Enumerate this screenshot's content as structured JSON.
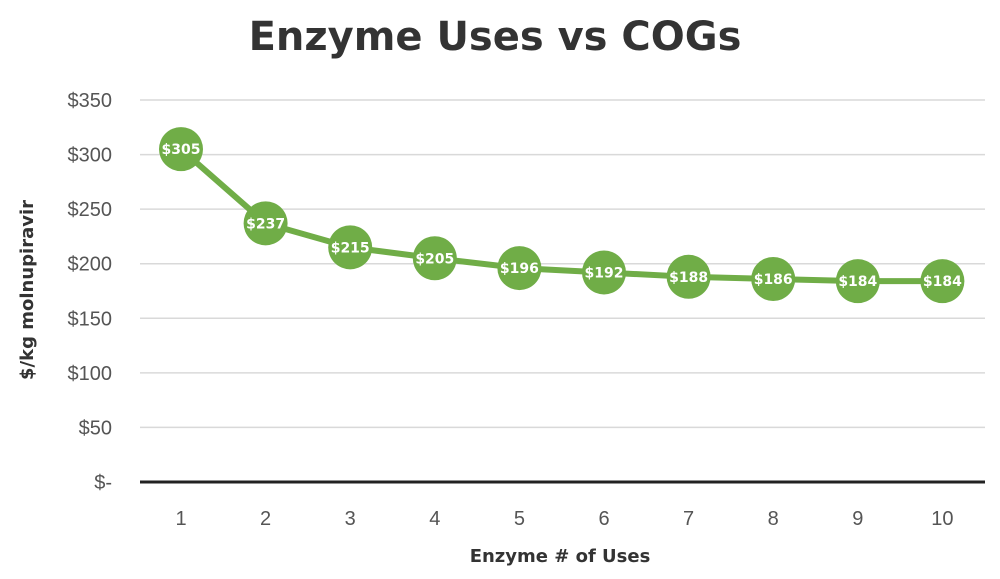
{
  "chart_data": {
    "type": "line",
    "title": "Enzyme Uses vs COGs",
    "xlabel": "Enzyme # of Uses",
    "ylabel": "$/kg molnupiravir",
    "x": [
      1,
      2,
      3,
      4,
      5,
      6,
      7,
      8,
      9,
      10
    ],
    "series": [
      {
        "values": [
          305,
          237,
          215,
          205,
          196,
          192,
          188,
          186,
          184,
          184
        ],
        "labels": [
          "$305",
          "$237",
          "$215",
          "$205",
          "$196",
          "$192",
          "$188",
          "$186",
          "$184",
          "$184"
        ]
      }
    ],
    "ylim": [
      0,
      350
    ],
    "yticks": [
      0,
      50,
      100,
      150,
      200,
      250,
      300,
      350
    ],
    "ytick_labels": [
      "$-",
      "$50",
      "$100",
      "$150",
      "$200",
      "$250",
      "$300",
      "$350"
    ],
    "xtick_labels": [
      "1",
      "2",
      "3",
      "4",
      "5",
      "6",
      "7",
      "8",
      "9",
      "10"
    ],
    "grid": true,
    "legend": "none",
    "colors": {
      "series": "#70ad47",
      "grid": "#d9d9d9",
      "axis": "#222222",
      "text": "#333333"
    }
  }
}
